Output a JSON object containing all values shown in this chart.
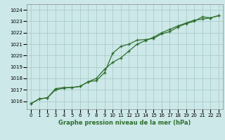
{
  "title": "Graphe pression niveau de la mer (hPa)",
  "bg_color": "#cde8e8",
  "grid_color": "#aacccc",
  "line_color": "#2d6e2d",
  "x_labels": [
    "0",
    "1",
    "2",
    "3",
    "4",
    "5",
    "6",
    "7",
    "8",
    "9",
    "10",
    "11",
    "12",
    "13",
    "14",
    "15",
    "16",
    "17",
    "18",
    "19",
    "20",
    "21",
    "22",
    "23"
  ],
  "ylim": [
    1015.3,
    1024.5
  ],
  "yticks": [
    1016,
    1017,
    1018,
    1019,
    1020,
    1021,
    1022,
    1023,
    1024
  ],
  "series1": [
    1015.8,
    1016.2,
    1016.3,
    1017.1,
    1017.2,
    1017.2,
    1017.3,
    1017.7,
    1017.8,
    1018.5,
    1020.2,
    1020.8,
    1021.0,
    1021.35,
    1021.4,
    1021.5,
    1021.9,
    1022.1,
    1022.5,
    1022.8,
    1023.0,
    1023.4,
    1023.3,
    1023.5
  ],
  "series2": [
    1015.8,
    1016.2,
    1016.3,
    1017.0,
    1017.15,
    1017.2,
    1017.3,
    1017.7,
    1018.0,
    1018.8,
    1019.4,
    1019.8,
    1020.4,
    1021.0,
    1021.3,
    1021.6,
    1022.0,
    1022.3,
    1022.6,
    1022.85,
    1023.1,
    1023.2,
    1023.3,
    1023.5
  ],
  "fig_width": 3.2,
  "fig_height": 2.0,
  "dpi": 100
}
